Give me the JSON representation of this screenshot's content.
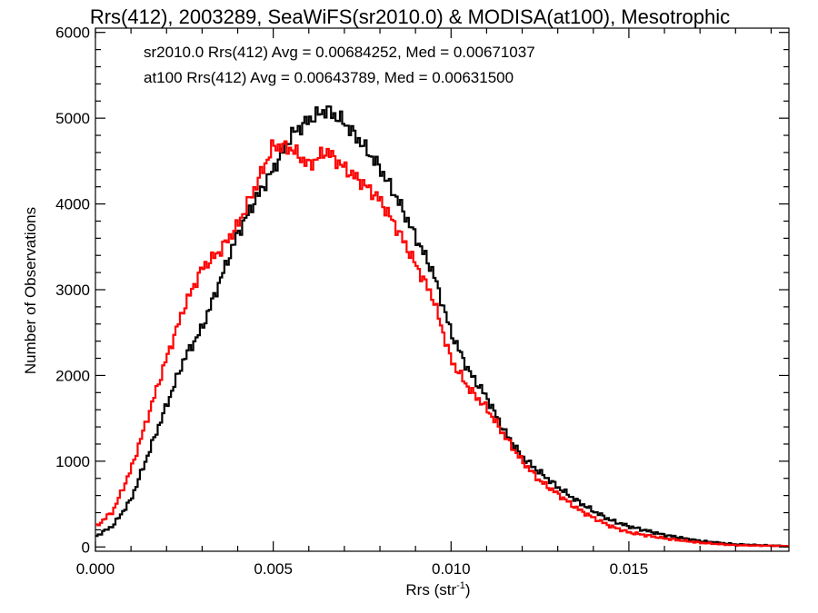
{
  "chart_data": {
    "type": "line",
    "title": "Rrs(412), 2003289, SeaWiFS(sr2010.0) & MODISA(at100), Mesotrophic",
    "xlabel": "Rrs (str",
    "xlabel_sup": "-1",
    "xlabel_close": ")",
    "ylabel": "Number of Observations",
    "xlim": [
      0.0,
      0.0195
    ],
    "ylim": [
      -50,
      6050
    ],
    "xticks": [
      {
        "value": 0.0,
        "label": "0.000"
      },
      {
        "value": 0.005,
        "label": "0.005"
      },
      {
        "value": 0.01,
        "label": "0.010"
      },
      {
        "value": 0.015,
        "label": "0.015"
      }
    ],
    "yticks": [
      {
        "value": 0,
        "label": "0"
      },
      {
        "value": 1000,
        "label": "1000"
      },
      {
        "value": 2000,
        "label": "2000"
      },
      {
        "value": 3000,
        "label": "3000"
      },
      {
        "value": 4000,
        "label": "4000"
      },
      {
        "value": 5000,
        "label": "5000"
      },
      {
        "value": 6000,
        "label": "6000"
      }
    ],
    "annotations": [
      {
        "text": "sr2010.0 Rrs(412) Avg = 0.00684252, Med = 0.00671037",
        "color": "#000000"
      },
      {
        "text": "at100 Rrs(412) Avg = 0.00643789, Med = 0.00631500",
        "color": "#ff0000"
      }
    ],
    "step": true,
    "series": [
      {
        "color": "#000000",
        "x": [
          0.0,
          0.0005,
          0.001,
          0.0015,
          0.002,
          0.0025,
          0.003,
          0.0035,
          0.004,
          0.0045,
          0.005,
          0.0055,
          0.006,
          0.0065,
          0.007,
          0.0075,
          0.008,
          0.0085,
          0.009,
          0.0095,
          0.01,
          0.0105,
          0.011,
          0.0115,
          0.012,
          0.0125,
          0.013,
          0.0135,
          0.014,
          0.0145,
          0.015,
          0.016,
          0.017,
          0.018,
          0.0195
        ],
        "y": [
          120,
          250,
          550,
          1100,
          1650,
          2200,
          2550,
          3100,
          3650,
          4050,
          4400,
          4800,
          4980,
          5100,
          4950,
          4700,
          4420,
          4050,
          3620,
          3200,
          2500,
          2050,
          1750,
          1350,
          1050,
          870,
          700,
          550,
          420,
          310,
          240,
          140,
          70,
          30,
          10
        ]
      },
      {
        "color": "#ff0000",
        "x": [
          0.0,
          0.0005,
          0.001,
          0.0015,
          0.002,
          0.0025,
          0.003,
          0.0035,
          0.004,
          0.0045,
          0.005,
          0.0055,
          0.006,
          0.0065,
          0.007,
          0.0075,
          0.008,
          0.0085,
          0.009,
          0.0095,
          0.01,
          0.0105,
          0.011,
          0.0115,
          0.012,
          0.0125,
          0.013,
          0.0135,
          0.014,
          0.0145,
          0.015,
          0.016,
          0.017,
          0.018,
          0.0195
        ],
        "y": [
          230,
          420,
          900,
          1550,
          2200,
          2800,
          3250,
          3450,
          3750,
          4200,
          4680,
          4650,
          4450,
          4620,
          4420,
          4250,
          4050,
          3700,
          3300,
          2900,
          2180,
          1850,
          1620,
          1300,
          1000,
          770,
          620,
          460,
          340,
          240,
          170,
          100,
          50,
          20,
          10
        ]
      }
    ]
  }
}
